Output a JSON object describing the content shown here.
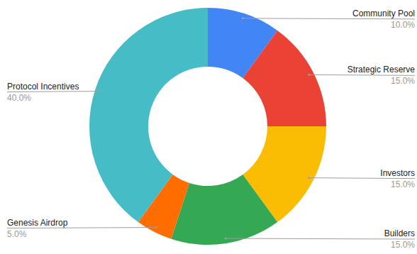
{
  "chart_data": {
    "type": "pie",
    "categories": [
      "Community Pool",
      "Strategic Reserve",
      "Investors",
      "Builders",
      "Genesis Airdrop",
      "Protocol Incentives"
    ],
    "values": [
      10,
      15,
      15,
      15,
      5,
      40
    ],
    "value_labels": [
      "10.0%",
      "15.0%",
      "15.0%",
      "15.0%",
      "5.0%",
      "40.0%"
    ],
    "colors": [
      "#4285f4",
      "#ea4335",
      "#fbbc04",
      "#34a853",
      "#ff6d01",
      "#46bdc6"
    ],
    "data_labels": true
  }
}
